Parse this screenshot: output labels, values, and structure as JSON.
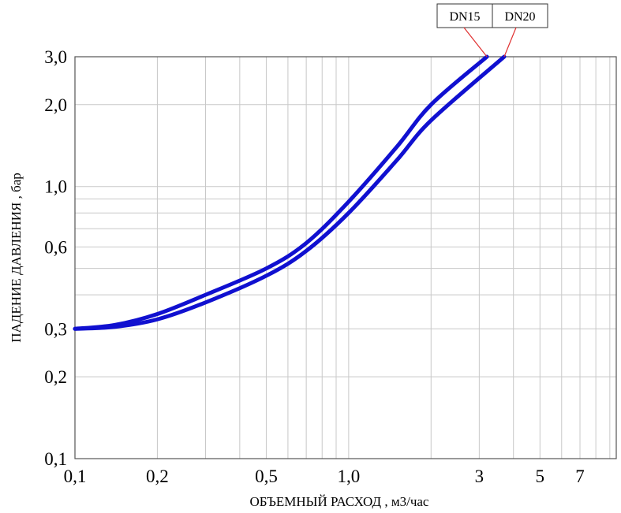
{
  "chart_data": {
    "type": "line",
    "title": "",
    "xlabel": "ОБЪЕМНЫЙ РАСХОД , м3/час",
    "ylabel": "ПАДЕНИЕ ДАВЛЕНИЯ , бар",
    "x_ticks": [
      {
        "value": 0.1,
        "label": "0,1"
      },
      {
        "value": 0.2,
        "label": "0,2"
      },
      {
        "value": 0.5,
        "label": "0,5"
      },
      {
        "value": 1.0,
        "label": "1,0"
      },
      {
        "value": 3,
        "label": "3"
      },
      {
        "value": 5,
        "label": "5"
      },
      {
        "value": 7,
        "label": "7"
      }
    ],
    "y_ticks": [
      {
        "value": 0.1,
        "label": "0,1"
      },
      {
        "value": 0.2,
        "label": "0,2"
      },
      {
        "value": 0.3,
        "label": "0,3"
      },
      {
        "value": 0.6,
        "label": "0,6"
      },
      {
        "value": 1.0,
        "label": "1,0"
      },
      {
        "value": 2.0,
        "label": "2,0"
      },
      {
        "value": 3.0,
        "label": "3,0"
      }
    ],
    "x_grid": [
      0.1,
      0.2,
      0.3,
      0.4,
      0.5,
      0.6,
      0.7,
      0.8,
      0.9,
      1.0,
      2,
      3,
      4,
      5,
      6,
      7,
      8,
      9
    ],
    "y_grid": [
      0.1,
      0.2,
      0.3,
      0.4,
      0.5,
      0.6,
      0.7,
      0.8,
      0.9,
      1.0,
      2.0,
      3.0
    ],
    "xlim": [
      0.1,
      9.5
    ],
    "ylim": [
      0.1,
      3.0
    ],
    "xscale": "log",
    "yscale": "log",
    "grid": true,
    "legend_position": "top-right",
    "series_color": "#1010d0",
    "legend_leader_color": "#e03030",
    "series": [
      {
        "name": "DN15",
        "x": [
          0.1,
          0.14,
          0.2,
          0.3,
          0.5,
          0.7,
          1.0,
          1.5,
          2.0,
          3.2
        ],
        "y": [
          0.3,
          0.31,
          0.34,
          0.4,
          0.5,
          0.62,
          0.88,
          1.4,
          2.0,
          3.0
        ]
      },
      {
        "name": "DN20",
        "x": [
          0.1,
          0.14,
          0.2,
          0.3,
          0.5,
          0.7,
          1.0,
          1.5,
          2.0,
          3.7
        ],
        "y": [
          0.3,
          0.305,
          0.325,
          0.375,
          0.47,
          0.58,
          0.8,
          1.25,
          1.75,
          3.0
        ]
      }
    ]
  }
}
